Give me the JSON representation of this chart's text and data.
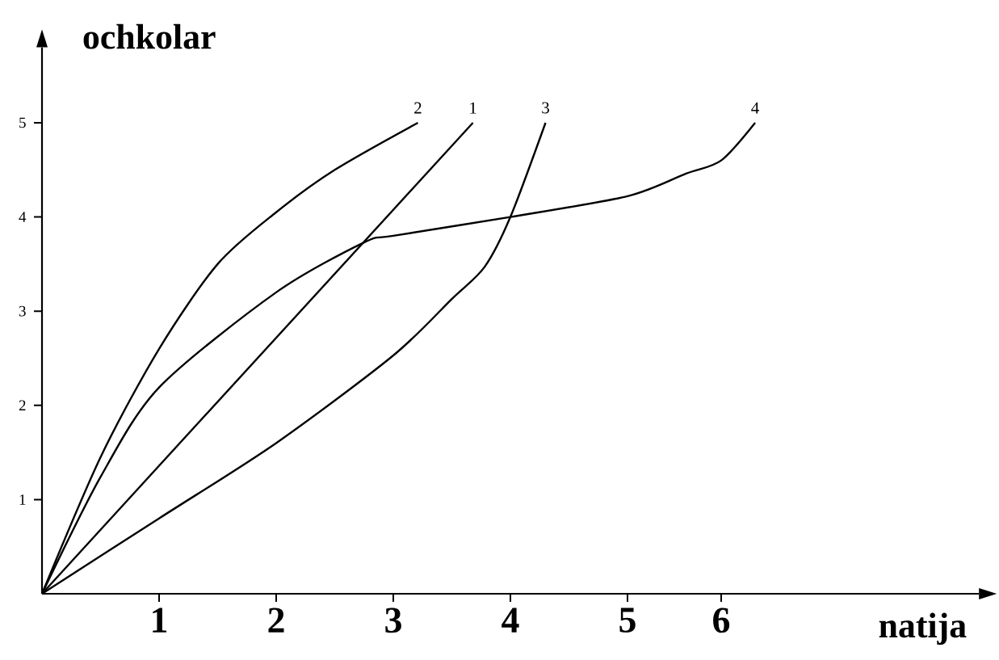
{
  "chart_data": {
    "type": "line",
    "xlabel": "natija",
    "ylabel": "ochkolar",
    "xlim": [
      0,
      8
    ],
    "ylim": [
      0,
      5.8
    ],
    "xticks": [
      1,
      2,
      3,
      4,
      5,
      {
        "value": 5.8,
        "label": "6"
      }
    ],
    "yticks": [
      1,
      2,
      3,
      4,
      5
    ],
    "marker": "none",
    "line_style": "solid",
    "series": [
      {
        "name": "1",
        "color": "#000000",
        "x": [
          0,
          3.68
        ],
        "values": [
          0,
          5
        ]
      },
      {
        "name": "2",
        "color": "#000000",
        "x": [
          0,
          0.5,
          1,
          1.5,
          2,
          2.5,
          3.21
        ],
        "values": [
          0,
          1.45,
          2.6,
          3.5,
          4.05,
          4.5,
          5
        ]
      },
      {
        "name": "3",
        "color": "#000000",
        "x": [
          0,
          1,
          2,
          3,
          3.5,
          3.78,
          4,
          4.3
        ],
        "values": [
          0,
          0.8,
          1.6,
          2.53,
          3.13,
          3.47,
          4.0,
          5
        ]
      },
      {
        "name": "4",
        "color": "#000000",
        "x": [
          0,
          0.5,
          1,
          2,
          2.75,
          3,
          4,
          5,
          5.5,
          5.8,
          6.09
        ],
        "values": [
          0,
          1.24,
          2.19,
          3.2,
          3.73,
          3.8,
          4.0,
          4.22,
          4.46,
          4.6,
          5
        ]
      }
    ]
  }
}
